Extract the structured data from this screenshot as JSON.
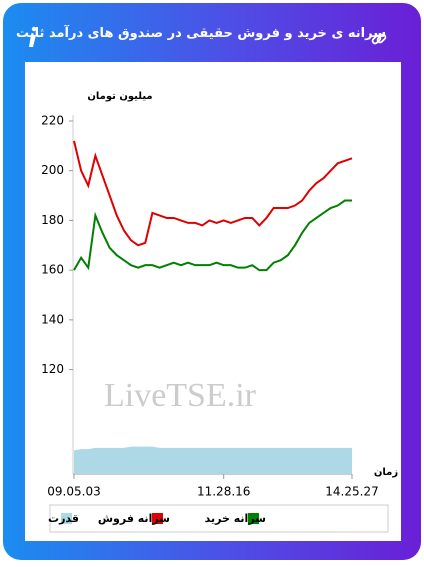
{
  "header": {
    "title": "سرانه ی خرید و فروش حقیقی در صندوق های درآمد ثابت"
  },
  "chart_data": {
    "type": "line",
    "y_label": "میلیون تومان",
    "x_label": "زمان",
    "watermark": "LiveTSE.ir",
    "categories": [
      "09.05.03",
      null,
      null,
      null,
      null,
      null,
      null,
      null,
      null,
      null,
      null,
      null,
      null,
      null,
      null,
      null,
      null,
      null,
      null,
      null,
      null,
      "11.28.16",
      null,
      null,
      null,
      null,
      null,
      null,
      null,
      null,
      null,
      null,
      null,
      null,
      null,
      null,
      null,
      null,
      null,
      "14.25.27"
    ],
    "series": [
      {
        "name": "قدرت",
        "color": "#add8e6",
        "values": [
          87.5,
          88,
          88,
          88.5,
          88.5,
          88.5,
          88.5,
          88.5,
          89,
          89,
          89,
          89,
          88.5,
          88.5,
          88.5,
          88.5,
          88.5,
          88.5,
          88.5,
          88.5,
          88.5,
          88.5,
          88.5,
          88.5,
          88.5,
          88.5,
          88.5,
          88.5,
          88.5,
          88.5,
          88.5,
          88.5,
          88.5,
          88.5,
          88.5,
          88.5,
          88.5,
          88.5,
          88.5,
          88.5
        ]
      },
      {
        "name": "سرانه فروش",
        "color": "#e00000",
        "values": [
          212,
          200,
          194,
          206,
          198,
          190,
          182,
          176,
          172,
          170,
          171,
          183,
          182,
          181,
          181,
          180,
          179,
          179,
          178,
          180,
          179,
          180,
          179,
          180,
          181,
          181,
          178,
          181,
          185,
          185,
          185,
          186,
          188,
          192,
          195,
          197,
          200,
          203,
          204,
          205
        ]
      },
      {
        "name": "سرانه خرید",
        "color": "#008000",
        "values": [
          160,
          165,
          161,
          182,
          175,
          169,
          166,
          164,
          162,
          161,
          162,
          162,
          161,
          162,
          163,
          162,
          163,
          162,
          162,
          162,
          163,
          162,
          162,
          161,
          161,
          162,
          160,
          160,
          163,
          164,
          166,
          170,
          175,
          179,
          181,
          183,
          185,
          186,
          188,
          188
        ]
      }
    ],
    "ylim": [
      78,
      220
    ],
    "yticks": [
      120,
      140,
      160,
      180,
      200,
      220
    ]
  }
}
